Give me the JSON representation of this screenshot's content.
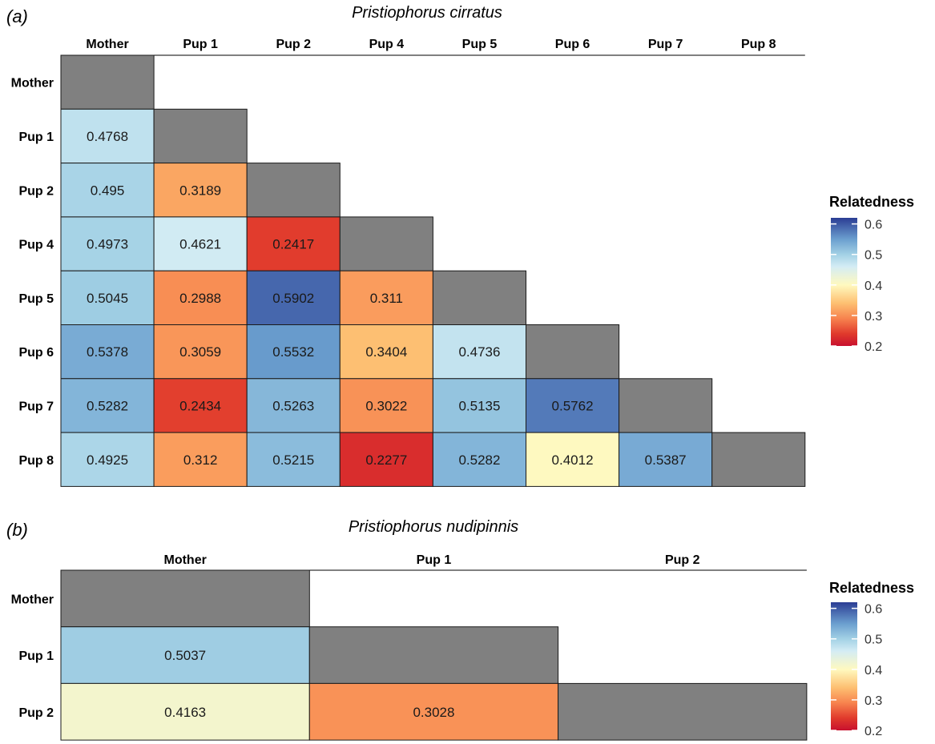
{
  "chart_data": [
    {
      "type": "heatmap",
      "panel_label": "(a)",
      "title": "Pristiophorus cirratus",
      "columns": [
        "Mother",
        "Pup 1",
        "Pup 2",
        "Pup 4",
        "Pup 5",
        "Pup 6",
        "Pup 7",
        "Pup 8"
      ],
      "rows": [
        "Mother",
        "Pup 1",
        "Pup 2",
        "Pup 4",
        "Pup 5",
        "Pup 6",
        "Pup 7",
        "Pup 8"
      ],
      "values": [
        [
          null
        ],
        [
          0.4768,
          null
        ],
        [
          0.495,
          0.3189,
          null
        ],
        [
          0.4973,
          0.4621,
          0.2417,
          null
        ],
        [
          0.5045,
          0.2988,
          0.5902,
          0.311,
          null
        ],
        [
          0.5378,
          0.3059,
          0.5532,
          0.3404,
          0.4736,
          null
        ],
        [
          0.5282,
          0.2434,
          0.5263,
          0.3022,
          0.5135,
          0.5762,
          null
        ],
        [
          0.4925,
          0.312,
          0.5215,
          0.2277,
          0.5282,
          0.4012,
          0.5387,
          null
        ]
      ],
      "labels": [
        [
          null
        ],
        [
          "0.4768",
          null
        ],
        [
          "0.495",
          "0.3189",
          null
        ],
        [
          "0.4973",
          "0.4621",
          "0.2417",
          null
        ],
        [
          "0.5045",
          "0.2988",
          "0.5902",
          "0.311",
          null
        ],
        [
          "0.5378",
          "0.3059",
          "0.5532",
          "0.3404",
          "0.4736",
          null
        ],
        [
          "0.5282",
          "0.2434",
          "0.5263",
          "0.3022",
          "0.5135",
          "0.5762",
          null
        ],
        [
          "0.4925",
          "0.312",
          "0.5215",
          "0.2277",
          "0.5282",
          "0.4012",
          "0.5387",
          null
        ]
      ],
      "diagonal_color": "#808080",
      "legend": {
        "title": "Relatedness",
        "range": [
          0.2,
          0.62
        ],
        "ticks": [
          0.6,
          0.5,
          0.4,
          0.3,
          0.2
        ],
        "tick_labels": [
          "0.6",
          "0.5",
          "0.4",
          "0.3",
          "0.2"
        ],
        "placement": "right"
      }
    },
    {
      "type": "heatmap",
      "panel_label": "(b)",
      "title": "Pristiophorus nudipinnis",
      "columns": [
        "Mother",
        "Pup 1",
        "Pup 2"
      ],
      "rows": [
        "Mother",
        "Pup 1",
        "Pup 2"
      ],
      "values": [
        [
          null
        ],
        [
          0.5037,
          null
        ],
        [
          0.4163,
          0.3028,
          null
        ]
      ],
      "labels": [
        [
          null
        ],
        [
          "0.5037",
          null
        ],
        [
          "0.4163",
          "0.3028",
          null
        ]
      ],
      "diagonal_color": "#808080",
      "legend": {
        "title": "Relatedness",
        "range": [
          0.2,
          0.62
        ],
        "ticks": [
          0.6,
          0.5,
          0.4,
          0.3,
          0.2
        ],
        "tick_labels": [
          "0.6",
          "0.5",
          "0.4",
          "0.3",
          "0.2"
        ],
        "placement": "right"
      }
    }
  ],
  "color_scale": {
    "name": "RdYlBu",
    "stops": [
      {
        "value": 0.2,
        "color": "#c8102e"
      },
      {
        "value": 0.24,
        "color": "#e03a2c"
      },
      {
        "value": 0.29,
        "color": "#f7834e"
      },
      {
        "value": 0.34,
        "color": "#fdbf71"
      },
      {
        "value": 0.4,
        "color": "#fff9bf"
      },
      {
        "value": 0.46,
        "color": "#d4ecf4"
      },
      {
        "value": 0.5,
        "color": "#a3d1e5"
      },
      {
        "value": 0.55,
        "color": "#6b9fcf"
      },
      {
        "value": 0.62,
        "color": "#2b3d94"
      }
    ]
  }
}
